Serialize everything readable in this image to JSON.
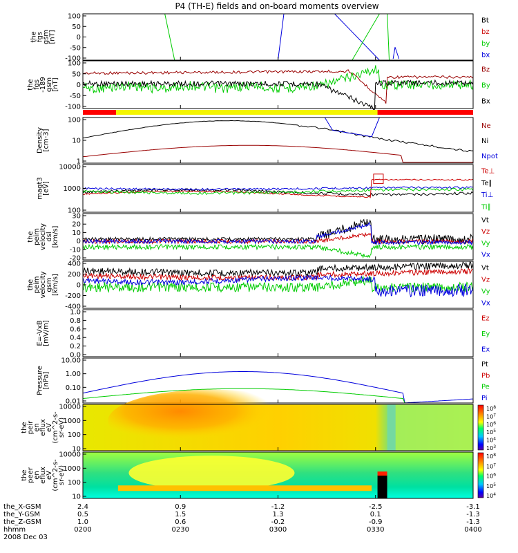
{
  "title": "P4 (TH-E) fields and on-board moments overview",
  "colors": {
    "black": "#000000",
    "red": "#cc0000",
    "green": "#00cc00",
    "blue": "#0000dd",
    "darkred": "#990000",
    "yellow": "#f5f500",
    "bar_red": "#ff0000"
  },
  "footer": {
    "rows": [
      {
        "label": "the_X-GSM",
        "values": [
          "2.4",
          "0.9",
          "-1.2",
          "-2.5",
          "-3.1"
        ]
      },
      {
        "label": "the_Y-GSM",
        "values": [
          "0.5",
          "1.5",
          "1.3",
          "0.1",
          "-1.3"
        ]
      },
      {
        "label": "the_Z-GSM",
        "values": [
          "1.0",
          "0.6",
          "-0.2",
          "-0.9",
          "-1.3"
        ]
      },
      {
        "label": "hhmm",
        "values": [
          "0200",
          "0230",
          "0300",
          "0330",
          "0400"
        ]
      }
    ],
    "date": "2008 Dec 03"
  },
  "chart_data": [
    {
      "type": "line",
      "id": "fgs",
      "ylabel": [
        "the",
        "fgs",
        "gsm",
        "[nT]"
      ],
      "yticks": [
        "100",
        "50",
        "0",
        "-50",
        "-100"
      ],
      "ylim": [
        -100,
        100
      ],
      "series": [
        {
          "name": "Bt",
          "color": "black"
        },
        {
          "name": "bz",
          "color": "red"
        },
        {
          "name": "by",
          "color": "green"
        },
        {
          "name": "bx",
          "color": "blue"
        }
      ]
    },
    {
      "type": "line",
      "id": "fgs2",
      "ylabel": [
        "the",
        "fgs",
        "-189",
        "gsm",
        "[nT]"
      ],
      "yticks": [
        "100",
        "50",
        "0",
        "-50",
        "-100"
      ],
      "ylim": [
        -120,
        100
      ],
      "series": [
        {
          "name": "Bz",
          "color": "darkred"
        },
        {
          "name": "By",
          "color": "green"
        },
        {
          "name": "Bx",
          "color": "black"
        }
      ]
    },
    {
      "type": "line",
      "id": "density",
      "log": true,
      "ylabel": [
        "Density",
        "[cm-3]"
      ],
      "yticks": [
        "100",
        "10",
        "1"
      ],
      "series": [
        {
          "name": "Ne",
          "color": "darkred"
        },
        {
          "name": "Ni",
          "color": "black"
        },
        {
          "name": "Npot",
          "color": "blue"
        }
      ]
    },
    {
      "type": "line",
      "id": "temp",
      "log": true,
      "ylabel": [
        "magt3",
        "[eV]"
      ],
      "yticks": [
        "10000",
        "1000",
        "100"
      ],
      "series": [
        {
          "name": "Te⊥",
          "color": "red"
        },
        {
          "name": "Te∥",
          "color": "black"
        },
        {
          "name": "Ti⊥",
          "color": "blue"
        },
        {
          "name": "Ti∥",
          "color": "green"
        }
      ]
    },
    {
      "type": "line",
      "id": "vel1",
      "ylabel": [
        "the",
        "peim",
        "velocity",
        "dsl",
        "[km/s]"
      ],
      "yticks": [
        "30",
        "20",
        "10",
        "0",
        "-10",
        "-20"
      ],
      "ylim": [
        -20,
        30
      ],
      "series": [
        {
          "name": "Vt",
          "color": "black"
        },
        {
          "name": "Vz",
          "color": "red"
        },
        {
          "name": "Vy",
          "color": "green"
        },
        {
          "name": "Vx",
          "color": "blue"
        }
      ]
    },
    {
      "type": "line",
      "id": "vel2",
      "ylabel": [
        "the",
        "peim",
        "velocity",
        "gsm",
        "[km/s]"
      ],
      "yticks": [
        "400",
        "200",
        "0",
        "-200",
        "-400"
      ],
      "ylim": [
        -400,
        400
      ],
      "series": [
        {
          "name": "Vt",
          "color": "black"
        },
        {
          "name": "Vz",
          "color": "red"
        },
        {
          "name": "Vy",
          "color": "green"
        },
        {
          "name": "Vx",
          "color": "blue"
        }
      ]
    },
    {
      "type": "line",
      "id": "efield",
      "ylabel": [
        "E=-VxB",
        "[mV/m]"
      ],
      "yticks": [
        "1.0",
        "0.8",
        "0.6",
        "0.4",
        "0.2",
        "0.0"
      ],
      "ylim": [
        0,
        1
      ],
      "series": [
        {
          "name": "Ez",
          "color": "red"
        },
        {
          "name": "Ey",
          "color": "green"
        },
        {
          "name": "Ex",
          "color": "blue"
        }
      ]
    },
    {
      "type": "line",
      "id": "pressure",
      "log": true,
      "ylabel": [
        "Pressure",
        "[nPa]"
      ],
      "yticks": [
        "10.00",
        "1.00",
        "0.10",
        "0.01"
      ],
      "series": [
        {
          "name": "Pt",
          "color": "black"
        },
        {
          "name": "Pb",
          "color": "red"
        },
        {
          "name": "Pe",
          "color": "green"
        },
        {
          "name": "Pi",
          "color": "blue"
        }
      ]
    },
    {
      "type": "heatmap",
      "id": "ion-spec",
      "ylabel": [
        "the",
        "peir",
        "en",
        "eflux",
        "eV",
        "(cm^2-s-",
        "sr-eV)"
      ],
      "yticks": [
        "10000",
        "1000",
        "100",
        "10"
      ],
      "colorbar_ticks": [
        "10^8",
        "10^7",
        "10^6",
        "10^5",
        "10^4",
        "10^3"
      ]
    },
    {
      "type": "heatmap",
      "id": "elec-spec",
      "ylabel": [
        "the",
        "peer",
        "en",
        "eflux",
        "eV",
        "(cm^2-s-",
        "sr-eV)"
      ],
      "yticks": [
        "10000",
        "1000",
        "100",
        "10"
      ],
      "colorbar_ticks": [
        "10^8",
        "10^7",
        "10^6",
        "10^5",
        "10^4"
      ]
    }
  ]
}
